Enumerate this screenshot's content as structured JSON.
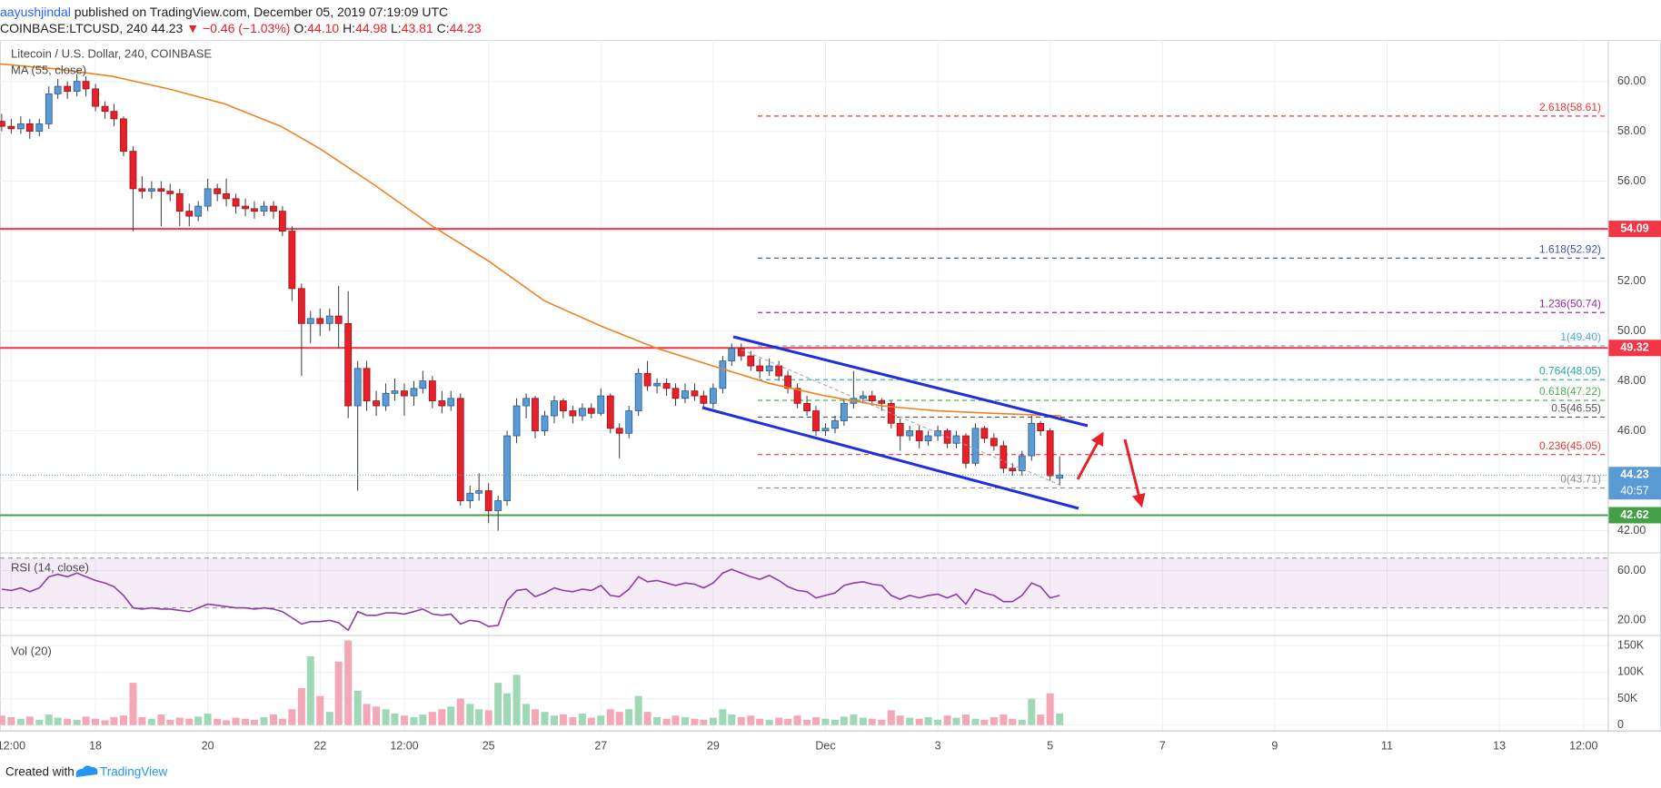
{
  "header": {
    "author": "aayushjindal",
    "published": "published on TradingView.com, December 05, 2019 07:19:09 UTC",
    "symbol": "COINBASE:LTCUSD, 240",
    "last": "44.23",
    "arrow": "▼",
    "change": "−0.46 (−1.03%)",
    "ohlc": [
      {
        "key": "O:",
        "value": "44.10"
      },
      {
        "key": "H:",
        "value": "44.98"
      },
      {
        "key": "L:",
        "value": "43.81"
      },
      {
        "key": "C:",
        "value": "44.23"
      }
    ]
  },
  "footer": {
    "created": "Created with",
    "brand": "TradingView"
  },
  "chart_data": {
    "type": "candlestick",
    "title": "Litecoin / U.S. Dollar, 240, COINBASE",
    "ma_name": "MA (55, close)",
    "rsi_name": "RSI (14, close)",
    "vol_name": "Vol (20)",
    "xlim": [
      16.3,
      44.94
    ],
    "xticks": [
      {
        "value": 16.5,
        "label": "12:00"
      },
      18,
      20,
      22,
      {
        "value": 23.5,
        "label": "12:00"
      },
      25,
      27,
      29,
      {
        "value": 31,
        "label": "Dec"
      },
      {
        "value": 33,
        "label": "3"
      },
      {
        "value": 35,
        "label": "5"
      },
      {
        "value": 37,
        "label": "7"
      },
      {
        "value": 39,
        "label": "9"
      },
      {
        "value": 41,
        "label": "11"
      },
      {
        "value": 43,
        "label": "13"
      },
      {
        "value": 44.5,
        "label": "12:00"
      }
    ],
    "ylim": [
      41.11,
      61.66
    ],
    "yticks": [
      {
        "value": 42,
        "label": "42.00"
      },
      {
        "value": 44,
        "label": "44.00"
      },
      {
        "value": 46,
        "label": "46.00"
      },
      {
        "value": 48,
        "label": "48.00"
      },
      {
        "value": 50,
        "label": "50.00"
      },
      {
        "value": 52,
        "label": "52.00"
      },
      {
        "value": 54,
        "label": "54.00"
      },
      {
        "value": 56,
        "label": "56.00"
      },
      {
        "value": 58,
        "label": "58.00"
      },
      {
        "value": 60,
        "label": "60.00"
      }
    ],
    "grid": true,
    "up_color": "#5b9bd5",
    "down_color": "#e8202a",
    "vol_up_color": "#9fd8b5",
    "vol_down_color": "#f4a7b4",
    "ma_color": "#f0821e",
    "rsi_color": "#8e3ca8",
    "x": [
      16.33,
      16.5,
      16.67,
      16.83,
      17,
      17.17,
      17.33,
      17.5,
      17.67,
      17.83,
      18,
      18.17,
      18.33,
      18.5,
      18.67,
      18.83,
      19,
      19.17,
      19.33,
      19.5,
      19.67,
      19.83,
      20,
      20.17,
      20.33,
      20.5,
      20.67,
      20.83,
      21,
      21.17,
      21.33,
      21.5,
      21.67,
      21.83,
      22,
      22.17,
      22.33,
      22.5,
      22.67,
      22.83,
      23,
      23.17,
      23.33,
      23.5,
      23.67,
      23.83,
      24,
      24.17,
      24.33,
      24.5,
      24.67,
      24.83,
      25,
      25.17,
      25.33,
      25.5,
      25.67,
      25.83,
      26,
      26.17,
      26.33,
      26.5,
      26.67,
      26.83,
      27,
      27.17,
      27.33,
      27.5,
      27.67,
      27.83,
      28,
      28.17,
      28.33,
      28.5,
      28.67,
      28.83,
      29,
      29.17,
      29.33,
      29.5,
      29.67,
      29.83,
      30,
      30.17,
      30.33,
      30.5,
      30.67,
      30.83,
      31,
      31.17,
      31.33,
      31.5,
      31.67,
      31.83,
      32,
      32.17,
      32.33,
      32.5,
      32.67,
      32.83,
      33,
      33.17,
      33.33,
      33.5,
      33.67,
      33.83,
      34,
      34.17,
      34.33,
      34.5,
      34.67,
      34.83,
      35,
      35.17
    ],
    "candles": [
      [
        58.4,
        58.7,
        58.0,
        58.2
      ],
      [
        58.2,
        58.5,
        57.9,
        58.1
      ],
      [
        58.1,
        58.6,
        57.9,
        58.3
      ],
      [
        58.3,
        58.5,
        57.7,
        58.0
      ],
      [
        58.0,
        58.5,
        57.8,
        58.3
      ],
      [
        58.3,
        59.8,
        58.1,
        59.5
      ],
      [
        59.5,
        60.1,
        59.3,
        59.8
      ],
      [
        59.8,
        60.0,
        59.3,
        59.6
      ],
      [
        59.6,
        60.3,
        59.4,
        60.0
      ],
      [
        60.0,
        60.2,
        59.4,
        59.7
      ],
      [
        59.7,
        59.9,
        58.8,
        59.0
      ],
      [
        59.0,
        59.2,
        58.5,
        58.8
      ],
      [
        58.8,
        59.1,
        58.2,
        58.5
      ],
      [
        58.5,
        58.6,
        57.0,
        57.2
      ],
      [
        57.2,
        57.4,
        54.0,
        55.7
      ],
      [
        55.7,
        56.2,
        55.3,
        55.6
      ],
      [
        55.6,
        56.0,
        55.3,
        55.7
      ],
      [
        55.7,
        56.0,
        54.2,
        55.6
      ],
      [
        55.6,
        55.9,
        55.2,
        55.5
      ],
      [
        55.5,
        55.7,
        54.2,
        54.8
      ],
      [
        54.8,
        55.1,
        54.2,
        54.6
      ],
      [
        54.6,
        55.2,
        54.4,
        55.0
      ],
      [
        55.0,
        56.1,
        54.8,
        55.7
      ],
      [
        55.7,
        55.9,
        55.2,
        55.5
      ],
      [
        55.5,
        56.1,
        55.0,
        55.3
      ],
      [
        55.3,
        55.5,
        54.7,
        55.0
      ],
      [
        55.0,
        55.3,
        54.6,
        54.9
      ],
      [
        54.9,
        55.2,
        54.5,
        54.8
      ],
      [
        54.8,
        55.2,
        54.6,
        55.0
      ],
      [
        55.0,
        55.2,
        54.5,
        54.8
      ],
      [
        54.8,
        55.0,
        53.8,
        54.0
      ],
      [
        54.0,
        54.2,
        51.2,
        51.7
      ],
      [
        51.7,
        51.9,
        48.2,
        50.3
      ],
      [
        50.3,
        50.8,
        49.5,
        50.5
      ],
      [
        50.5,
        50.9,
        49.8,
        50.3
      ],
      [
        50.3,
        50.9,
        50.0,
        50.6
      ],
      [
        50.6,
        51.8,
        49.3,
        50.3
      ],
      [
        50.3,
        51.6,
        46.5,
        47.0
      ],
      [
        47.0,
        48.8,
        43.6,
        48.5
      ],
      [
        48.5,
        48.8,
        46.8,
        47.2
      ],
      [
        47.2,
        47.6,
        46.6,
        47.0
      ],
      [
        47.0,
        47.9,
        46.8,
        47.5
      ],
      [
        47.5,
        48.1,
        47.2,
        47.6
      ],
      [
        47.6,
        47.9,
        46.6,
        47.4
      ],
      [
        47.4,
        48.0,
        47.0,
        47.7
      ],
      [
        47.7,
        48.4,
        47.5,
        48.0
      ],
      [
        48.0,
        48.2,
        46.9,
        47.2
      ],
      [
        47.2,
        47.6,
        46.7,
        47.0
      ],
      [
        47.0,
        47.6,
        46.8,
        47.3
      ],
      [
        47.3,
        47.5,
        43.0,
        43.2
      ],
      [
        43.2,
        43.8,
        42.9,
        43.5
      ],
      [
        43.5,
        44.3,
        43.2,
        43.6
      ],
      [
        43.6,
        43.9,
        42.3,
        42.8
      ],
      [
        42.8,
        43.4,
        42.0,
        43.2
      ],
      [
        43.2,
        46.0,
        43.0,
        45.8
      ],
      [
        45.8,
        47.3,
        45.5,
        47.0
      ],
      [
        47.0,
        47.5,
        46.5,
        47.3
      ],
      [
        47.3,
        47.4,
        45.7,
        46.0
      ],
      [
        46.0,
        46.8,
        45.8,
        46.6
      ],
      [
        46.6,
        47.4,
        46.3,
        47.2
      ],
      [
        47.2,
        47.3,
        46.5,
        46.8
      ],
      [
        46.8,
        47.0,
        46.3,
        46.6
      ],
      [
        46.6,
        47.1,
        46.4,
        46.9
      ],
      [
        46.9,
        47.1,
        46.5,
        46.7
      ],
      [
        46.7,
        47.7,
        46.6,
        47.4
      ],
      [
        47.4,
        47.5,
        45.9,
        46.1
      ],
      [
        46.1,
        46.3,
        44.9,
        45.9
      ],
      [
        45.9,
        47.0,
        45.7,
        46.8
      ],
      [
        46.8,
        48.5,
        46.6,
        48.3
      ],
      [
        48.3,
        48.8,
        47.6,
        47.8
      ],
      [
        47.8,
        48.1,
        47.5,
        47.9
      ],
      [
        47.9,
        48.1,
        47.4,
        47.7
      ],
      [
        47.7,
        47.9,
        47.0,
        47.3
      ],
      [
        47.3,
        47.9,
        47.1,
        47.6
      ],
      [
        47.6,
        47.9,
        47.2,
        47.4
      ],
      [
        47.4,
        47.6,
        46.9,
        47.1
      ],
      [
        47.1,
        47.9,
        46.9,
        47.7
      ],
      [
        47.7,
        49.0,
        47.5,
        48.8
      ],
      [
        48.8,
        49.5,
        48.6,
        49.3
      ],
      [
        49.3,
        49.5,
        48.8,
        49.0
      ],
      [
        49.0,
        49.2,
        48.4,
        48.6
      ],
      [
        48.6,
        48.9,
        48.1,
        48.4
      ],
      [
        48.4,
        48.9,
        48.2,
        48.6
      ],
      [
        48.6,
        48.8,
        48.0,
        48.2
      ],
      [
        48.2,
        48.4,
        47.5,
        47.7
      ],
      [
        47.7,
        47.9,
        46.9,
        47.1
      ],
      [
        47.1,
        47.4,
        46.6,
        46.8
      ],
      [
        46.8,
        47.0,
        45.8,
        46.0
      ],
      [
        46.0,
        46.3,
        45.8,
        46.1
      ],
      [
        46.1,
        46.6,
        45.9,
        46.4
      ],
      [
        46.4,
        47.3,
        46.2,
        47.1
      ],
      [
        47.1,
        48.4,
        46.9,
        47.3
      ],
      [
        47.3,
        47.6,
        47.1,
        47.4
      ],
      [
        47.4,
        47.6,
        47.0,
        47.2
      ],
      [
        47.2,
        47.3,
        46.8,
        47.1
      ],
      [
        47.1,
        47.2,
        46.1,
        46.3
      ],
      [
        46.3,
        46.5,
        45.2,
        45.8
      ],
      [
        45.8,
        46.2,
        45.6,
        46.0
      ],
      [
        46.0,
        46.2,
        45.3,
        45.6
      ],
      [
        45.6,
        46.0,
        45.4,
        45.8
      ],
      [
        45.8,
        46.2,
        45.6,
        46.0
      ],
      [
        46.0,
        46.1,
        45.3,
        45.5
      ],
      [
        45.5,
        46.0,
        45.3,
        45.8
      ],
      [
        45.8,
        45.9,
        44.5,
        44.7
      ],
      [
        44.7,
        46.3,
        44.6,
        46.1
      ],
      [
        46.1,
        46.2,
        45.5,
        45.7
      ],
      [
        45.7,
        45.9,
        45.2,
        45.4
      ],
      [
        45.4,
        45.6,
        44.3,
        44.5
      ],
      [
        44.5,
        44.7,
        44.2,
        44.4
      ],
      [
        44.4,
        45.2,
        44.2,
        45.0
      ],
      [
        45.0,
        46.6,
        44.8,
        46.3
      ],
      [
        46.3,
        46.4,
        45.8,
        46.0
      ],
      [
        46.0,
        46.1,
        44.0,
        44.2
      ],
      [
        44.1,
        44.98,
        43.81,
        44.23
      ]
    ],
    "volume": [
      18000,
      15000,
      12000,
      16000,
      10000,
      20000,
      14000,
      12000,
      10000,
      16000,
      12000,
      9000,
      15000,
      18000,
      80000,
      15000,
      12000,
      20000,
      10000,
      14000,
      12000,
      16000,
      22000,
      12000,
      9000,
      14000,
      12000,
      10000,
      15000,
      20000,
      12000,
      30000,
      70000,
      130000,
      55000,
      25000,
      120000,
      160000,
      65000,
      40000,
      35000,
      30000,
      22000,
      18000,
      15000,
      20000,
      25000,
      30000,
      35000,
      50000,
      40000,
      30000,
      28000,
      80000,
      60000,
      95000,
      40000,
      30000,
      25000,
      18000,
      20000,
      15000,
      22000,
      14000,
      18000,
      30000,
      25000,
      30000,
      55000,
      25000,
      15000,
      12000,
      18000,
      15000,
      12000,
      10000,
      14000,
      30000,
      20000,
      15000,
      18000,
      12000,
      10000,
      14000,
      12000,
      18000,
      10000,
      15000,
      12000,
      10000,
      16000,
      20000,
      14000,
      12000,
      10000,
      28000,
      18000,
      14000,
      12000,
      15000,
      10000,
      18000,
      14000,
      20000,
      12000,
      10000,
      15000,
      20000,
      12000,
      10000,
      50000,
      20000,
      60000,
      22000
    ],
    "volume_ylim": [
      -10800,
      169400
    ],
    "volume_ticks": [
      0,
      {
        "value": 50000,
        "label": "50K"
      },
      {
        "value": 100000,
        "label": "100K"
      },
      {
        "value": 150000,
        "label": "150K"
      }
    ],
    "rsi": [
      45,
      44,
      46,
      43,
      46,
      55,
      57,
      55,
      58,
      55,
      52,
      50,
      47,
      40,
      30,
      29,
      30,
      29,
      29,
      28,
      27,
      30,
      33,
      32,
      31,
      30,
      30,
      29,
      30,
      29,
      27,
      22,
      17,
      19,
      19,
      20,
      18,
      12,
      27,
      24,
      24,
      26,
      26,
      25,
      27,
      29,
      25,
      24,
      25,
      17,
      20,
      19,
      15,
      16,
      36,
      44,
      45,
      39,
      42,
      46,
      44,
      43,
      45,
      44,
      48,
      40,
      39,
      45,
      55,
      51,
      52,
      50,
      48,
      50,
      49,
      46,
      50,
      58,
      61,
      58,
      55,
      53,
      56,
      52,
      47,
      44,
      43,
      38,
      40,
      42,
      48,
      50,
      51,
      49,
      48,
      40,
      37,
      40,
      38,
      40,
      41,
      38,
      41,
      33,
      45,
      42,
      40,
      35,
      35,
      40,
      50,
      47,
      38,
      40
    ],
    "rsi_ylim": [
      7.8,
      74.2
    ],
    "rsi_band": [
      30,
      70
    ],
    "rsi_ticks": [
      {
        "value": 20,
        "label": "20.00"
      },
      {
        "value": 60,
        "label": "60.00"
      }
    ],
    "ma": {
      "x": [
        16.3,
        17.3,
        18.3,
        19.3,
        20.3,
        21.3,
        22,
        23,
        24,
        25,
        26,
        27,
        28,
        29,
        30,
        31,
        32,
        33,
        34,
        35.2
      ],
      "values": [
        60.7,
        60.5,
        60.2,
        59.7,
        59.1,
        58.2,
        57.3,
        55.8,
        54.2,
        52.8,
        51.2,
        50.2,
        49.3,
        48.6,
        47.9,
        47.4,
        47.0,
        46.8,
        46.7,
        46.6
      ]
    },
    "levels": [
      {
        "value": 54.09,
        "color": "#f23645"
      },
      {
        "value": 49.32,
        "color": "#f23645"
      },
      {
        "value": 42.62,
        "color": "#43a047"
      }
    ],
    "last_color": "#5b9bd5",
    "countdown": "40:57",
    "fib": [
      {
        "value": 58.61,
        "label": "2.618(58.61)",
        "color": "#e53935"
      },
      {
        "value": 52.92,
        "label": "1.618(52.92)",
        "color": "#3f51b5"
      },
      {
        "value": 50.74,
        "label": "1.236(50.74)",
        "color": "#9c27b0"
      },
      {
        "value": 49.4,
        "label": "1(49.40)",
        "color": "#4fa8de"
      },
      {
        "value": 48.05,
        "label": "0.764(48.05)",
        "color": "#26a69a"
      },
      {
        "value": 47.22,
        "label": "0.618(47.22)",
        "color": "#4caf50"
      },
      {
        "value": 46.55,
        "label": "0.5(46.55)",
        "color": "#555555"
      },
      {
        "value": 45.05,
        "label": "0.236(45.05)",
        "color": "#e53935"
      },
      {
        "value": 43.71,
        "label": "0(43.71)",
        "color": "#909090"
      }
    ]
  }
}
